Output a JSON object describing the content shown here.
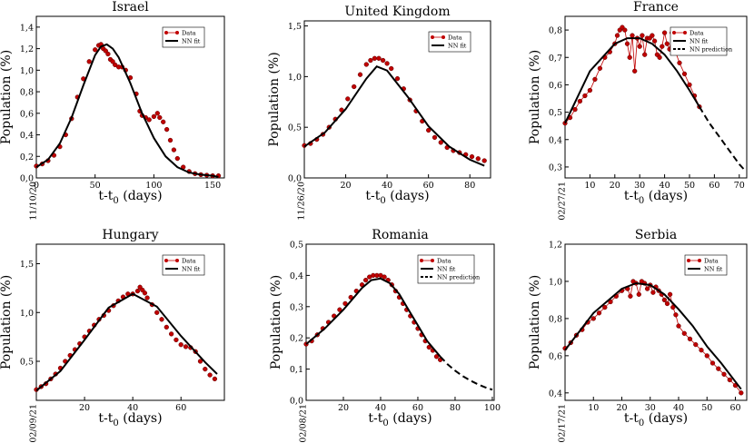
{
  "figure": {
    "x_label_main": "t-t",
    "x_label_sub": "0",
    "x_label_unit": " (days)",
    "y_label": "Population (%)",
    "legend_data": "Data",
    "legend_fit": "NN fit",
    "legend_pred": "NN prediction",
    "colors": {
      "data": "#c00000",
      "data_line": "#c00000",
      "fit": "#000000"
    }
  },
  "chart_data": [
    {
      "type": "line",
      "title": "Israel",
      "date_label": "11/10/20",
      "xlim": [
        0,
        160
      ],
      "ylim": [
        0,
        1.5
      ],
      "xticks": [
        0,
        50,
        100,
        150
      ],
      "xtick_labels": [
        "0",
        "50",
        "100",
        "150"
      ],
      "yticks": [
        0,
        0.2,
        0.4,
        0.6,
        0.8,
        1.0,
        1.2,
        1.4
      ],
      "ytick_labels": [
        "0,0",
        "0,2",
        "0,4",
        "0,6",
        "0,8",
        "1,0",
        "1,2",
        "1,4"
      ],
      "legend": [
        "Data",
        "NN fit"
      ],
      "series": [
        {
          "name": "Data",
          "style": "markers",
          "x": [
            0,
            5,
            10,
            15,
            20,
            25,
            30,
            35,
            40,
            45,
            50,
            53,
            55,
            57,
            59,
            61,
            63,
            65,
            67,
            70,
            73,
            76,
            80,
            85,
            88,
            90,
            93,
            96,
            100,
            103,
            105,
            108,
            111,
            114,
            117,
            120,
            125,
            130,
            135,
            140,
            145,
            150,
            155
          ],
          "y": [
            0.11,
            0.13,
            0.16,
            0.21,
            0.29,
            0.4,
            0.55,
            0.75,
            0.92,
            1.08,
            1.19,
            1.23,
            1.24,
            1.2,
            1.18,
            1.15,
            1.1,
            1.08,
            1.05,
            1.03,
            1.03,
            1.0,
            0.93,
            0.78,
            0.62,
            0.58,
            0.56,
            0.54,
            0.57,
            0.6,
            0.56,
            0.52,
            0.45,
            0.35,
            0.26,
            0.18,
            0.1,
            0.06,
            0.04,
            0.03,
            0.025,
            0.02,
            0.02
          ]
        },
        {
          "name": "NN fit",
          "style": "line",
          "x": [
            0,
            10,
            20,
            30,
            40,
            50,
            55,
            60,
            65,
            70,
            80,
            90,
            100,
            110,
            120,
            130,
            140,
            150,
            155
          ],
          "y": [
            0.1,
            0.17,
            0.32,
            0.56,
            0.86,
            1.14,
            1.22,
            1.24,
            1.2,
            1.12,
            0.88,
            0.6,
            0.37,
            0.2,
            0.1,
            0.05,
            0.03,
            0.02,
            0.01
          ]
        }
      ]
    },
    {
      "type": "line",
      "title": "United Kingdom",
      "date_label": "11/26/20",
      "xlim": [
        0,
        90
      ],
      "ylim": [
        0,
        1.55
      ],
      "xticks": [
        20,
        40,
        60,
        80
      ],
      "xtick_labels": [
        "20",
        "40",
        "60",
        "80"
      ],
      "yticks": [
        0,
        0.5,
        1.0,
        1.5
      ],
      "ytick_labels": [
        "0,0",
        "0,5",
        "1,0",
        "1,5"
      ],
      "legend": [
        "Data",
        "NN fit"
      ],
      "series": [
        {
          "name": "Data",
          "style": "markers",
          "x": [
            0,
            3,
            6,
            9,
            12,
            15,
            18,
            21,
            24,
            27,
            30,
            32,
            34,
            36,
            38,
            40,
            42,
            45,
            48,
            51,
            54,
            57,
            60,
            63,
            66,
            69,
            72,
            75,
            78,
            81,
            84,
            87
          ],
          "y": [
            0.32,
            0.34,
            0.38,
            0.43,
            0.5,
            0.58,
            0.67,
            0.78,
            0.9,
            1.02,
            1.12,
            1.16,
            1.18,
            1.18,
            1.16,
            1.13,
            1.08,
            0.98,
            0.88,
            0.77,
            0.66,
            0.56,
            0.47,
            0.4,
            0.35,
            0.3,
            0.27,
            0.25,
            0.23,
            0.21,
            0.19,
            0.17
          ]
        },
        {
          "name": "NN fit",
          "style": "line",
          "x": [
            0,
            10,
            20,
            30,
            35,
            40,
            50,
            60,
            70,
            80,
            87
          ],
          "y": [
            0.31,
            0.45,
            0.68,
            0.98,
            1.1,
            1.06,
            0.8,
            0.51,
            0.31,
            0.18,
            0.12
          ]
        }
      ]
    },
    {
      "type": "line",
      "title": "France",
      "date_label": "02/27/21",
      "xlim": [
        0,
        73
      ],
      "ylim": [
        0.26,
        0.85
      ],
      "xticks": [
        10,
        20,
        30,
        40,
        50,
        60,
        70
      ],
      "xtick_labels": [
        "10",
        "20",
        "30",
        "40",
        "50",
        "60",
        "70"
      ],
      "yticks": [
        0.3,
        0.4,
        0.5,
        0.6,
        0.7,
        0.8
      ],
      "ytick_labels": [
        "0,3",
        "0,4",
        "0,5",
        "0,6",
        "0,7",
        "0,8"
      ],
      "legend": [
        "Data",
        "NN fit",
        "NN prediction"
      ],
      "series": [
        {
          "name": "Data",
          "style": "markers-line",
          "x": [
            0,
            2,
            4,
            6,
            8,
            10,
            12,
            14,
            16,
            18,
            20,
            21,
            22,
            23,
            24,
            25,
            26,
            27,
            28,
            29,
            30,
            31,
            32,
            33,
            34,
            35,
            36,
            37,
            38,
            39,
            40,
            41,
            42,
            43,
            44,
            46,
            48,
            50,
            52,
            54
          ],
          "y": [
            0.46,
            0.48,
            0.51,
            0.54,
            0.56,
            0.58,
            0.62,
            0.66,
            0.7,
            0.72,
            0.75,
            0.78,
            0.8,
            0.81,
            0.8,
            0.75,
            0.7,
            0.78,
            0.65,
            0.77,
            0.74,
            0.78,
            0.71,
            0.77,
            0.77,
            0.78,
            0.76,
            0.71,
            0.7,
            0.74,
            0.79,
            0.75,
            0.73,
            0.79,
            0.73,
            0.68,
            0.64,
            0.6,
            0.56,
            0.52
          ]
        },
        {
          "name": "NN fit",
          "style": "line",
          "x": [
            0,
            10,
            20,
            25,
            30,
            35,
            40,
            45,
            50,
            54
          ],
          "y": [
            0.46,
            0.65,
            0.75,
            0.77,
            0.77,
            0.75,
            0.71,
            0.65,
            0.58,
            0.52
          ]
        },
        {
          "name": "NN prediction",
          "style": "dashed",
          "x": [
            54,
            58,
            62,
            66,
            70,
            72
          ],
          "y": [
            0.52,
            0.46,
            0.41,
            0.36,
            0.31,
            0.29
          ]
        }
      ]
    },
    {
      "type": "line",
      "title": "Hungary",
      "date_label": "02/09/21",
      "xlim": [
        0,
        78
      ],
      "ylim": [
        0.1,
        1.7
      ],
      "xticks": [
        20,
        40,
        60
      ],
      "xtick_labels": [
        "20",
        "40",
        "60"
      ],
      "yticks": [
        0.5,
        1.0,
        1.5
      ],
      "ytick_labels": [
        "0,5",
        "1,0",
        "1,5"
      ],
      "legend": [
        "Data",
        "NN fit"
      ],
      "series": [
        {
          "name": "Data",
          "style": "markers",
          "x": [
            0,
            2,
            4,
            6,
            8,
            10,
            12,
            14,
            16,
            18,
            20,
            22,
            24,
            26,
            28,
            30,
            32,
            34,
            36,
            38,
            40,
            42,
            43,
            44,
            45,
            46,
            48,
            50,
            52,
            54,
            56,
            58,
            60,
            62,
            64,
            66,
            68,
            70,
            72,
            74
          ],
          "y": [
            0.21,
            0.24,
            0.27,
            0.32,
            0.37,
            0.43,
            0.5,
            0.56,
            0.62,
            0.68,
            0.75,
            0.81,
            0.87,
            0.93,
            0.97,
            1.02,
            1.07,
            1.12,
            1.16,
            1.19,
            1.19,
            1.22,
            1.26,
            1.23,
            1.2,
            1.15,
            1.08,
            1.0,
            0.93,
            0.85,
            0.78,
            0.72,
            0.67,
            0.65,
            0.64,
            0.6,
            0.5,
            0.42,
            0.36,
            0.32
          ]
        },
        {
          "name": "NN fit",
          "style": "line",
          "x": [
            0,
            10,
            20,
            30,
            40,
            50,
            60,
            70,
            75
          ],
          "y": [
            0.2,
            0.4,
            0.72,
            1.05,
            1.19,
            1.06,
            0.76,
            0.49,
            0.37
          ]
        }
      ]
    },
    {
      "type": "line",
      "title": "Romania",
      "date_label": "02/08/21",
      "xlim": [
        0,
        101
      ],
      "ylim": [
        0,
        0.5
      ],
      "xticks": [
        20,
        40,
        60,
        80,
        100
      ],
      "xtick_labels": [
        "20",
        "40",
        "60",
        "80",
        "100"
      ],
      "yticks": [
        0,
        0.1,
        0.2,
        0.3,
        0.4,
        0.5
      ],
      "ytick_labels": [
        "0,0",
        "0,1",
        "0,2",
        "0,3",
        "0,4",
        "0,5"
      ],
      "legend": [
        "Data",
        "NN fit",
        "NN prediction"
      ],
      "series": [
        {
          "name": "Data",
          "style": "markers",
          "x": [
            0,
            3,
            6,
            9,
            12,
            15,
            18,
            21,
            24,
            27,
            30,
            32,
            34,
            36,
            38,
            40,
            42,
            44,
            46,
            48,
            50,
            52,
            54,
            56,
            58,
            60,
            62,
            64,
            66,
            68,
            70,
            72
          ],
          "y": [
            0.18,
            0.19,
            0.21,
            0.23,
            0.25,
            0.27,
            0.29,
            0.31,
            0.33,
            0.35,
            0.37,
            0.385,
            0.395,
            0.4,
            0.4,
            0.4,
            0.395,
            0.385,
            0.37,
            0.35,
            0.33,
            0.31,
            0.29,
            0.27,
            0.25,
            0.23,
            0.21,
            0.19,
            0.17,
            0.16,
            0.14,
            0.13
          ]
        },
        {
          "name": "NN fit",
          "style": "line",
          "x": [
            0,
            10,
            20,
            30,
            35,
            40,
            45,
            50,
            55,
            60,
            65,
            72
          ],
          "y": [
            0.18,
            0.23,
            0.29,
            0.36,
            0.385,
            0.39,
            0.375,
            0.34,
            0.29,
            0.24,
            0.19,
            0.14
          ]
        },
        {
          "name": "NN prediction",
          "style": "dashed",
          "x": [
            72,
            76,
            80,
            84,
            88,
            92,
            96,
            100
          ],
          "y": [
            0.14,
            0.115,
            0.095,
            0.078,
            0.064,
            0.052,
            0.042,
            0.034
          ]
        }
      ]
    },
    {
      "type": "line",
      "title": "Serbia",
      "date_label": "02/17/21",
      "xlim": [
        0,
        64
      ],
      "ylim": [
        0.36,
        1.2
      ],
      "xticks": [
        10,
        20,
        30,
        40,
        50,
        60
      ],
      "xtick_labels": [
        "10",
        "20",
        "30",
        "40",
        "50",
        "60"
      ],
      "yticks": [
        0.4,
        0.6,
        0.8,
        1.0,
        1.2
      ],
      "ytick_labels": [
        "0,4",
        "0,6",
        "0,8",
        "1,0",
        "1,2"
      ],
      "legend": [
        "Data",
        "NN fit"
      ],
      "series": [
        {
          "name": "Data",
          "style": "markers-line",
          "x": [
            0,
            2,
            4,
            6,
            8,
            10,
            12,
            14,
            16,
            18,
            20,
            22,
            23,
            24,
            25,
            26,
            27,
            28,
            29,
            30,
            31,
            32,
            33,
            34,
            35,
            36,
            37,
            38,
            39,
            40,
            42,
            44,
            46,
            48,
            50,
            52,
            54,
            56,
            58,
            60,
            62
          ],
          "y": [
            0.64,
            0.67,
            0.71,
            0.74,
            0.78,
            0.8,
            0.83,
            0.86,
            0.89,
            0.92,
            0.95,
            0.96,
            0.92,
            1.0,
            0.99,
            0.93,
            1.0,
            0.99,
            0.96,
            0.98,
            0.94,
            0.97,
            0.95,
            0.93,
            0.9,
            0.88,
            0.93,
            0.86,
            0.82,
            0.76,
            0.72,
            0.69,
            0.66,
            0.63,
            0.6,
            0.56,
            0.53,
            0.5,
            0.47,
            0.44,
            0.4
          ]
        },
        {
          "name": "NN fit",
          "style": "line",
          "x": [
            0,
            10,
            20,
            25,
            30,
            35,
            40,
            45,
            50,
            55,
            62
          ],
          "y": [
            0.63,
            0.83,
            0.96,
            0.99,
            0.98,
            0.93,
            0.85,
            0.76,
            0.65,
            0.56,
            0.42
          ]
        }
      ]
    }
  ]
}
